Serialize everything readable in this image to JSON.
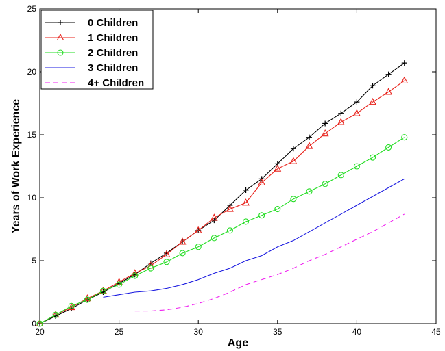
{
  "chart_data": {
    "type": "line",
    "title": "",
    "xlabel": "Age",
    "ylabel": "Years of Work Experience",
    "xlim": [
      20,
      45
    ],
    "ylim": [
      0,
      25
    ],
    "xticks": [
      20,
      25,
      30,
      35,
      40,
      45
    ],
    "yticks": [
      0,
      5,
      10,
      15,
      20,
      25
    ],
    "grid": false,
    "legend_position": "top-left",
    "series": [
      {
        "name": "0 Children",
        "color": "#000000",
        "marker": "plus",
        "dash": "solid",
        "x": [
          20,
          21,
          22,
          23,
          24,
          25,
          26,
          27,
          28,
          29,
          30,
          31,
          32,
          33,
          34,
          35,
          36,
          37,
          38,
          39,
          40,
          41,
          42,
          43
        ],
        "y": [
          0.0,
          0.6,
          1.2,
          1.9,
          2.5,
          3.2,
          3.9,
          4.8,
          5.6,
          6.5,
          7.4,
          8.2,
          9.4,
          10.6,
          11.5,
          12.7,
          13.9,
          14.8,
          15.9,
          16.7,
          17.6,
          18.9,
          19.8,
          20.7
        ]
      },
      {
        "name": "1 Children",
        "color": "#e8211a",
        "marker": "triangle",
        "dash": "solid",
        "x": [
          20,
          21,
          22,
          23,
          24,
          25,
          26,
          27,
          28,
          29,
          30,
          31,
          32,
          33,
          34,
          35,
          36,
          37,
          38,
          39,
          40,
          41,
          42,
          43
        ],
        "y": [
          0.0,
          0.7,
          1.3,
          2.0,
          2.6,
          3.3,
          4.0,
          4.6,
          5.5,
          6.5,
          7.4,
          8.4,
          9.1,
          9.6,
          11.2,
          12.3,
          12.9,
          14.1,
          15.1,
          16.0,
          16.7,
          17.6,
          18.4,
          19.3
        ]
      },
      {
        "name": "2 Children",
        "color": "#22dd22",
        "marker": "circle",
        "dash": "solid",
        "x": [
          20,
          21,
          22,
          23,
          24,
          25,
          26,
          27,
          28,
          29,
          30,
          31,
          32,
          33,
          34,
          35,
          36,
          37,
          38,
          39,
          40,
          41,
          42,
          43
        ],
        "y": [
          0.0,
          0.7,
          1.4,
          1.9,
          2.6,
          3.1,
          3.8,
          4.4,
          4.9,
          5.6,
          6.1,
          6.8,
          7.4,
          8.1,
          8.6,
          9.1,
          9.9,
          10.5,
          11.1,
          11.8,
          12.5,
          13.2,
          14.0,
          14.8
        ]
      },
      {
        "name": "3 Children",
        "color": "#1a1ae0",
        "marker": "none",
        "dash": "solid",
        "x": [
          24,
          25,
          26,
          27,
          28,
          29,
          30,
          31,
          32,
          33,
          34,
          35,
          36,
          37,
          38,
          39,
          40,
          41,
          42,
          43
        ],
        "y": [
          2.1,
          2.3,
          2.5,
          2.6,
          2.8,
          3.1,
          3.5,
          4.0,
          4.4,
          5.0,
          5.4,
          6.1,
          6.6,
          7.3,
          8.0,
          8.7,
          9.4,
          10.1,
          10.8,
          11.5
        ]
      },
      {
        "name": "4+ Children",
        "color": "#f020f0",
        "marker": "none",
        "dash": "dashed",
        "x": [
          26,
          27,
          28,
          29,
          30,
          31,
          32,
          33,
          34,
          35,
          36,
          37,
          38,
          39,
          40,
          41,
          42,
          43
        ],
        "y": [
          1.0,
          1.0,
          1.1,
          1.3,
          1.6,
          2.0,
          2.5,
          3.1,
          3.5,
          3.9,
          4.4,
          5.0,
          5.5,
          6.1,
          6.7,
          7.3,
          8.0,
          8.7
        ]
      }
    ]
  }
}
